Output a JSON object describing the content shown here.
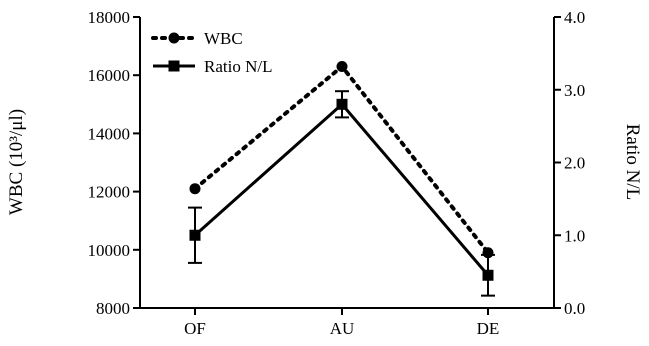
{
  "chart_data": {
    "type": "line",
    "categories": [
      "OF",
      "AU",
      "DE"
    ],
    "ylabel_left": "WBC (10³/μl)",
    "ylabel_right": "Ratio N/L",
    "ylim_left": [
      8000,
      18000
    ],
    "yticks_left": [
      "8000",
      "10000",
      "12000",
      "14000",
      "16000",
      "18000"
    ],
    "ylim_right": [
      0.0,
      4.0
    ],
    "yticks_right": [
      "0.0",
      "1.0",
      "2.0",
      "3.0",
      "4.0"
    ],
    "grid": false,
    "legend_position": "top-left",
    "series": [
      {
        "name": "WBC",
        "axis": "left",
        "style": "dotted",
        "marker": "circle",
        "values": [
          12100,
          16300,
          9900
        ],
        "error": [
          0,
          0,
          0
        ]
      },
      {
        "name": "Ratio N/L",
        "axis": "right",
        "style": "solid",
        "marker": "square",
        "values": [
          1.0,
          2.8,
          0.45
        ],
        "error": [
          0.38,
          0.18,
          0.28
        ]
      }
    ]
  }
}
